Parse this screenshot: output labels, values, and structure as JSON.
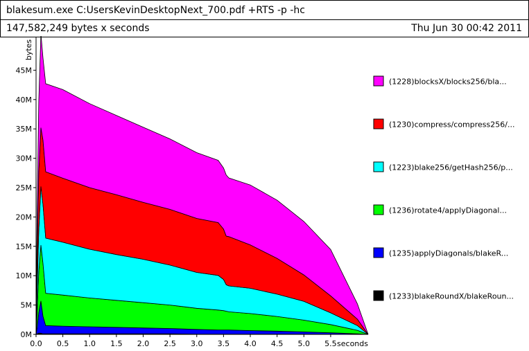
{
  "header": {
    "command": "blakesum.exe C:UsersKevinDesktopNext_700.pdf +RTS -p -hc",
    "total": "147,582,249 bytes x seconds",
    "date": "Thu Jun 30 00:42 2011"
  },
  "chart_data": {
    "type": "area",
    "stacked": true,
    "xlabel": "seconds",
    "ylabel": "bytes",
    "xlim": [
      0,
      6.2
    ],
    "ylim": [
      0,
      50
    ],
    "x_ticks": [
      "0.0",
      "0.5",
      "1.0",
      "1.5",
      "2.0",
      "2.5",
      "3.0",
      "3.5",
      "4.0",
      "4.5",
      "5.0",
      "5.5"
    ],
    "y_ticks": [
      "0M",
      "5M",
      "10M",
      "15M",
      "20M",
      "25M",
      "30M",
      "35M",
      "40M",
      "45M"
    ],
    "legend_position": "right",
    "x": [
      0.0,
      0.02,
      0.05,
      0.09,
      0.13,
      0.18,
      0.5,
      1.0,
      1.5,
      2.0,
      2.5,
      3.0,
      3.4,
      3.5,
      3.55,
      3.6,
      4.0,
      4.5,
      5.0,
      5.5,
      6.0,
      6.2
    ],
    "series": [
      {
        "name": "(1233)blakeRoundX/blakeRoun...",
        "color": "#000000",
        "values": [
          0.0,
          0.1,
          0.2,
          0.2,
          0.1,
          0.1,
          0.1,
          0.1,
          0.1,
          0.1,
          0.1,
          0.05,
          0.05,
          0.05,
          0.05,
          0.05,
          0.05,
          0.05,
          0.03,
          0.02,
          0.0,
          0.0
        ]
      },
      {
        "name": "(1235)applyDiagonals/blakeR...",
        "color": "#0000ff",
        "values": [
          0.0,
          1.0,
          3.5,
          5.5,
          3.0,
          1.4,
          1.3,
          1.2,
          1.1,
          1.0,
          0.9,
          0.8,
          0.7,
          0.7,
          0.7,
          0.7,
          0.6,
          0.5,
          0.4,
          0.25,
          0.1,
          0.0
        ]
      },
      {
        "name": "(1236)rotate4/applyDiagonal...",
        "color": "#00ff00",
        "values": [
          0.0,
          2.5,
          7.0,
          9.5,
          9.0,
          5.5,
          5.3,
          4.9,
          4.6,
          4.3,
          4.0,
          3.6,
          3.4,
          3.3,
          3.2,
          3.1,
          2.9,
          2.5,
          2.0,
          1.4,
          0.6,
          0.0
        ]
      },
      {
        "name": "(1223)blake256/getHash256/p...",
        "color": "#00ffff",
        "values": [
          0.0,
          4.0,
          7.0,
          10.0,
          10.0,
          9.4,
          9.0,
          8.3,
          7.8,
          7.4,
          6.8,
          6.1,
          5.9,
          5.3,
          4.5,
          4.4,
          4.3,
          3.8,
          3.2,
          2.0,
          0.8,
          0.0
        ]
      },
      {
        "name": "(1230)compress/compress256/...",
        "color": "#ff0000",
        "values": [
          0.0,
          5.0,
          10.0,
          10.0,
          11.0,
          11.3,
          10.9,
          10.5,
          10.2,
          9.7,
          9.5,
          9.2,
          9.0,
          8.6,
          8.3,
          8.4,
          7.4,
          6.1,
          4.5,
          2.9,
          1.1,
          0.0
        ]
      },
      {
        "name": "(1228)blocksX/blocks256/bla...",
        "color": "#ff00ff",
        "values": [
          0.0,
          8.0,
          12.0,
          16.0,
          14.0,
          15.0,
          15.1,
          14.3,
          13.5,
          12.8,
          12.0,
          11.2,
          10.6,
          10.4,
          10.4,
          10.0,
          10.2,
          9.9,
          9.1,
          7.9,
          2.6,
          0.0
        ]
      }
    ]
  }
}
